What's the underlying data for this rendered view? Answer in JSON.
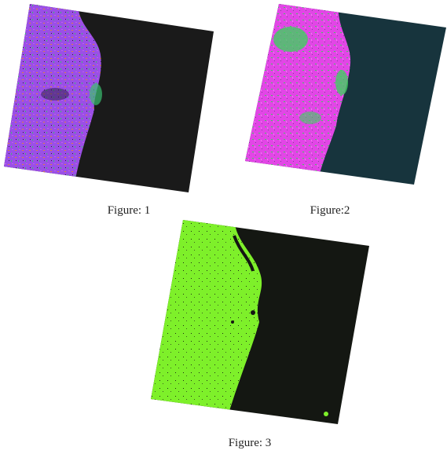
{
  "figures": [
    {
      "caption": "Figure: 1"
    },
    {
      "caption": "Figure:2"
    },
    {
      "caption": "Figure: 3"
    }
  ]
}
